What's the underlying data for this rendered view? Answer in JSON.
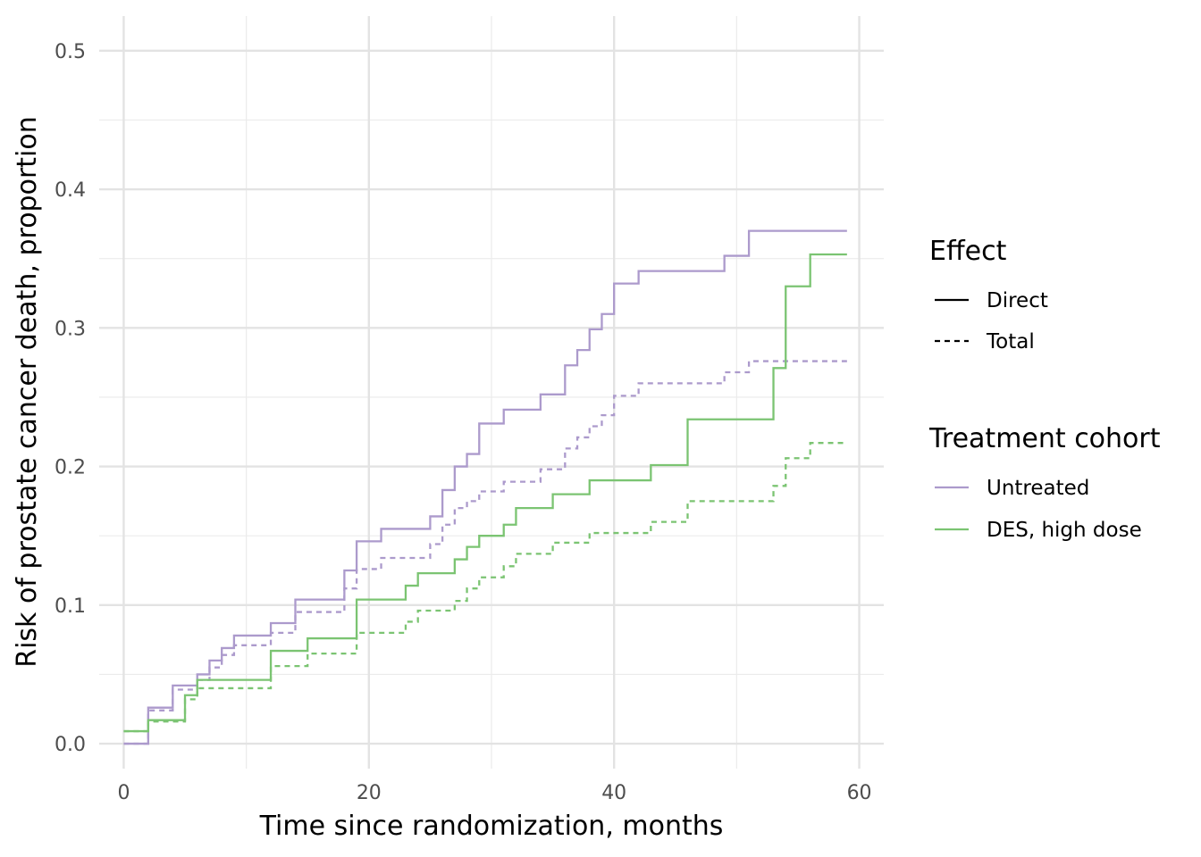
{
  "chart_data": {
    "type": "line",
    "step": true,
    "title": "",
    "xlabel": "Time since randomization, months",
    "ylabel": "Risk of prostate cancer death, proportion",
    "xlim": [
      -2,
      62
    ],
    "ylim": [
      -0.018,
      0.525
    ],
    "x_ticks": [
      0,
      20,
      40,
      60
    ],
    "y_ticks": [
      0.0,
      0.1,
      0.2,
      0.3,
      0.4,
      0.5
    ],
    "x_tick_labels": [
      "0",
      "20",
      "40",
      "60"
    ],
    "y_tick_labels": [
      "0.0",
      "0.1",
      "0.2",
      "0.3",
      "0.4",
      "0.5"
    ],
    "grid": true,
    "legend_placement": "right",
    "legends": [
      {
        "title": "Effect",
        "entries": [
          {
            "label": "Direct",
            "linetype": "solid"
          },
          {
            "label": "Total",
            "linetype": "dashed"
          }
        ]
      },
      {
        "title": "Treatment cohort",
        "entries": [
          {
            "label": "Untreated",
            "color": "#ac9acc"
          },
          {
            "label": "DES, high dose",
            "color": "#7bc472"
          }
        ]
      }
    ],
    "series": [
      {
        "name": "Untreated",
        "effect": "Direct",
        "color": "#ac9acc",
        "linetype": "solid",
        "x": [
          0,
          2,
          4,
          6,
          7,
          8,
          9,
          12,
          14,
          18,
          19,
          21,
          25,
          26,
          27,
          28,
          29,
          31,
          34,
          36,
          37,
          38,
          39,
          40,
          42,
          49,
          51,
          59
        ],
        "y": [
          0.0,
          0.026,
          0.042,
          0.05,
          0.06,
          0.069,
          0.078,
          0.087,
          0.104,
          0.125,
          0.146,
          0.155,
          0.164,
          0.183,
          0.2,
          0.209,
          0.231,
          0.241,
          0.252,
          0.273,
          0.284,
          0.299,
          0.31,
          0.332,
          0.341,
          0.352,
          0.37,
          0.37
        ]
      },
      {
        "name": "Untreated",
        "effect": "Total",
        "color": "#ac9acc",
        "linetype": "dashed",
        "x": [
          0,
          2,
          4,
          6,
          7,
          8,
          9,
          12,
          14,
          18,
          19,
          21,
          25,
          26,
          27,
          28,
          29,
          31,
          34,
          36,
          37,
          38,
          39,
          40,
          42,
          49,
          51,
          59
        ],
        "y": [
          0.0,
          0.024,
          0.039,
          0.046,
          0.055,
          0.064,
          0.071,
          0.08,
          0.095,
          0.112,
          0.126,
          0.134,
          0.144,
          0.158,
          0.17,
          0.175,
          0.182,
          0.189,
          0.198,
          0.213,
          0.221,
          0.229,
          0.237,
          0.251,
          0.26,
          0.268,
          0.276,
          0.276
        ]
      },
      {
        "name": "DES, high dose",
        "effect": "Direct",
        "color": "#7bc472",
        "linetype": "solid",
        "x": [
          0,
          2,
          5,
          6,
          12,
          15,
          19,
          23,
          24,
          27,
          28,
          29,
          31,
          32,
          35,
          38,
          43,
          46,
          53,
          54,
          56,
          59
        ],
        "y": [
          0.009,
          0.017,
          0.035,
          0.046,
          0.067,
          0.076,
          0.104,
          0.114,
          0.123,
          0.133,
          0.142,
          0.15,
          0.158,
          0.17,
          0.18,
          0.19,
          0.201,
          0.234,
          0.271,
          0.33,
          0.353,
          0.353
        ]
      },
      {
        "name": "DES, high dose",
        "effect": "Total",
        "color": "#7bc472",
        "linetype": "dashed",
        "x": [
          0,
          2,
          5,
          6,
          12,
          15,
          19,
          23,
          24,
          27,
          28,
          29,
          31,
          32,
          35,
          38,
          43,
          46,
          53,
          54,
          56,
          59
        ],
        "y": [
          0.009,
          0.016,
          0.032,
          0.04,
          0.056,
          0.065,
          0.08,
          0.088,
          0.096,
          0.103,
          0.112,
          0.12,
          0.128,
          0.137,
          0.145,
          0.152,
          0.16,
          0.175,
          0.186,
          0.206,
          0.217,
          0.217
        ]
      }
    ]
  }
}
